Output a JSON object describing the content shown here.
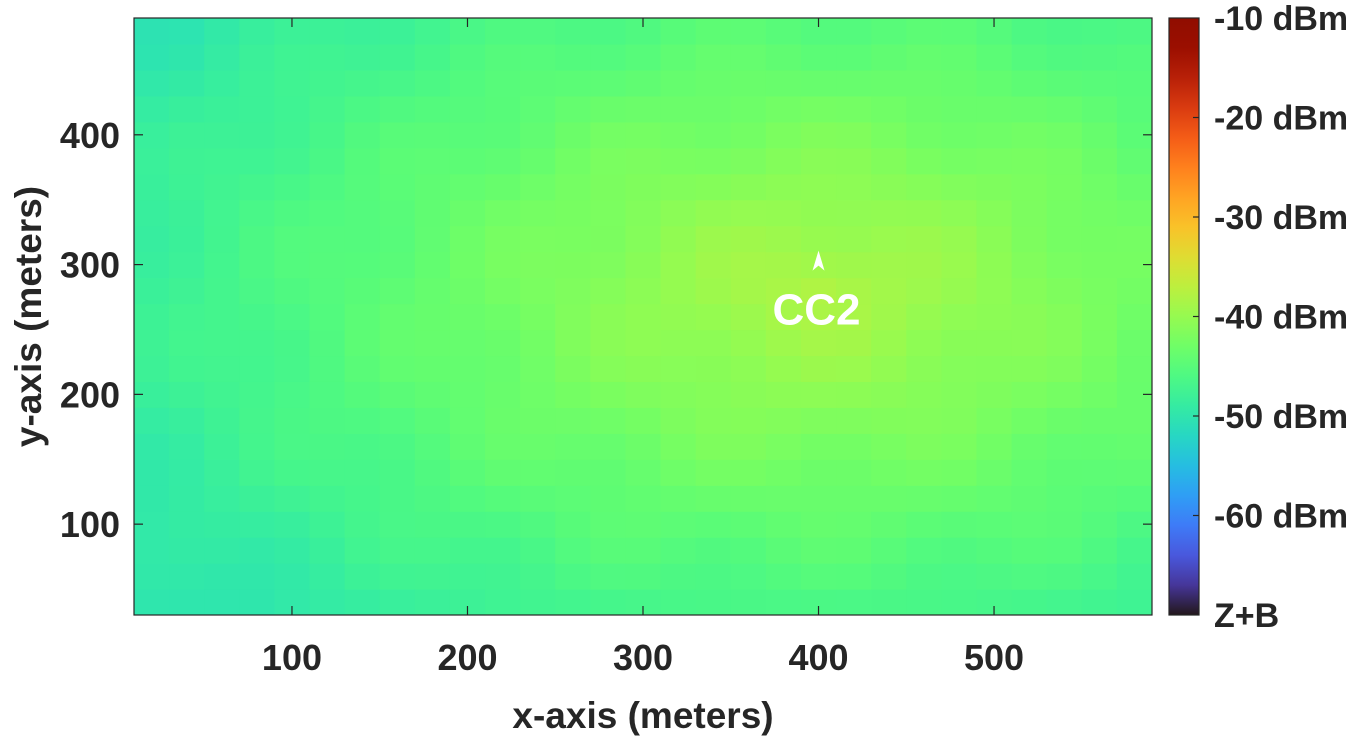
{
  "chart_data": {
    "type": "heatmap",
    "title": "",
    "xlabel": "x-axis (meters)",
    "ylabel": "y-axis (meters)",
    "xlim": [
      10,
      590
    ],
    "ylim": [
      30,
      490
    ],
    "xticks": [
      100,
      200,
      300,
      400,
      500
    ],
    "yticks": [
      100,
      200,
      300,
      400
    ],
    "grid": false,
    "cell_size_m": 20,
    "field": {
      "description": "received power over grid, peak near marker",
      "peak_x": 400,
      "peak_y": 280,
      "peak_value_dbm": -38,
      "edge_value_dbm": -50,
      "x_spread_m": 430,
      "y_spread_m": 330
    },
    "markers": [
      {
        "x": 400,
        "y": 300,
        "label": "CC2",
        "symbol": "arrow-up",
        "color": "#ffffff"
      }
    ],
    "colorbar": {
      "position": "right",
      "colormap": "turbo",
      "range_dbm": [
        -70,
        -10
      ],
      "ticks": [
        {
          "value": -10,
          "label": "-10 dBm"
        },
        {
          "value": -20,
          "label": "-20 dBm"
        },
        {
          "value": -30,
          "label": "-30 dBm"
        },
        {
          "value": -40,
          "label": "-40 dBm"
        },
        {
          "value": -50,
          "label": "-50 dBm"
        },
        {
          "value": -60,
          "label": "-60 dBm"
        },
        {
          "value": -70,
          "label": "Z+B"
        }
      ]
    }
  }
}
